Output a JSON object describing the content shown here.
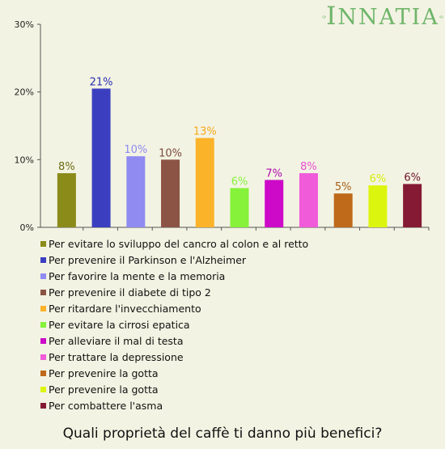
{
  "logo": {
    "text": "INNATIA",
    "first": "I",
    "rest": "NNATIA"
  },
  "question": "Quali proprietà del caffè ti danno più benefici?",
  "chart_data": {
    "type": "bar",
    "ylim": [
      0,
      30
    ],
    "yticks": [
      0,
      10,
      20,
      30
    ],
    "ytick_labels": [
      "0%",
      "10%",
      "20%",
      "30%"
    ],
    "grid": false,
    "legend_position": "bottom",
    "categories": [
      "Per evitare lo sviluppo del cancro al colon e al retto",
      "Per prevenire il Parkinson e l'Alzheimer",
      "Per favorire la mente e la memoria",
      "Per prevenire il diabete di tipo 2",
      "Per ritardare l'invecchiamento",
      "Per evitare la cirrosi epatica",
      "Per alleviare il mal di testa",
      "Per trattare la depressione",
      "Per prevenire la gotta",
      "Per prevenire la gotta",
      "Per combattere l'asma"
    ],
    "values": [
      8,
      20.5,
      10.5,
      10,
      13.2,
      5.8,
      7,
      8,
      5,
      6.2,
      6.4
    ],
    "value_labels": [
      "8%",
      "21%",
      "10%",
      "10%",
      "13%",
      "6%",
      "7%",
      "8%",
      "5%",
      "6%",
      "6%"
    ],
    "colors": [
      "#8b8b1a",
      "#3b3fbf",
      "#8f8bf1",
      "#8b5444",
      "#fbb32a",
      "#86f23a",
      "#cc0ac8",
      "#f05bd9",
      "#be6a1a",
      "#dcf50f",
      "#841a33"
    ],
    "label_colors": [
      "#6b6b12",
      "#2a2fb0",
      "#8f8bf1",
      "#7a4a3c",
      "#f5a818",
      "#86f23a",
      "#b008ac",
      "#e84ed0",
      "#a85e18",
      "#d6ee0a",
      "#6e1228"
    ]
  }
}
